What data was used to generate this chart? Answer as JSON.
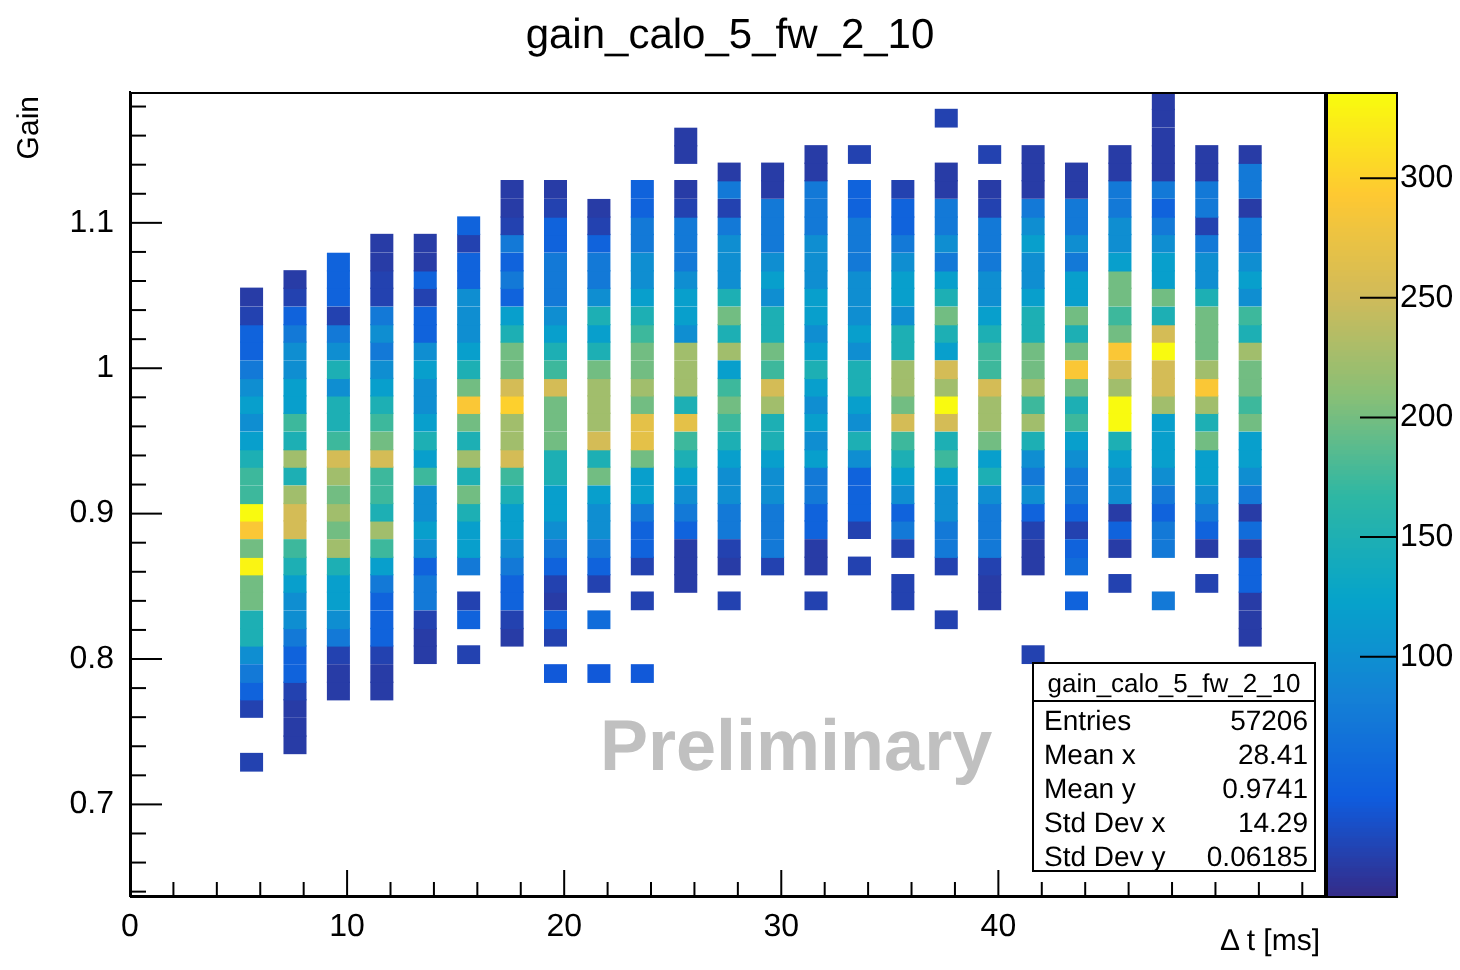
{
  "chart_data": {
    "type": "heatmap",
    "title": "gain_calo_5_fw_2_10",
    "xlabel": "Δ t [ms]",
    "ylabel": "Gain",
    "x": [
      5.6,
      7.6,
      9.6,
      11.6,
      13.6,
      15.6,
      17.6,
      19.6,
      21.6,
      23.6,
      25.6,
      27.6,
      29.6,
      31.6,
      33.6,
      35.6,
      37.6,
      39.6,
      41.6,
      43.6,
      45.6,
      47.6,
      49.6,
      51.6
    ],
    "y": [
      1.184,
      1.172,
      1.159,
      1.147,
      1.135,
      1.123,
      1.11,
      1.098,
      1.086,
      1.073,
      1.061,
      1.049,
      1.036,
      1.024,
      1.012,
      0.999,
      0.987,
      0.975,
      0.963,
      0.95,
      0.938,
      0.926,
      0.913,
      0.901,
      0.889,
      0.876,
      0.864,
      0.852,
      0.84,
      0.827,
      0.815,
      0.803,
      0.79,
      0.778,
      0.766,
      0.753,
      0.741,
      0.729
    ],
    "cells": [
      [
        null,
        null,
        null,
        null,
        null,
        null,
        null,
        null,
        null,
        null,
        null,
        null,
        null,
        null,
        null,
        null,
        null,
        null,
        null,
        null,
        null,
        15,
        null,
        null
      ],
      [
        null,
        null,
        null,
        null,
        null,
        null,
        null,
        null,
        null,
        null,
        null,
        null,
        null,
        null,
        null,
        null,
        20,
        null,
        null,
        null,
        null,
        15,
        null,
        null
      ],
      [
        null,
        null,
        null,
        null,
        null,
        null,
        null,
        null,
        null,
        null,
        15,
        null,
        null,
        null,
        null,
        null,
        null,
        null,
        null,
        null,
        null,
        15,
        null,
        null
      ],
      [
        null,
        null,
        null,
        null,
        null,
        null,
        null,
        null,
        null,
        null,
        15,
        null,
        null,
        15,
        20,
        null,
        null,
        20,
        15,
        null,
        15,
        15,
        15,
        15
      ],
      [
        null,
        null,
        null,
        null,
        null,
        null,
        null,
        null,
        null,
        null,
        null,
        15,
        15,
        15,
        null,
        null,
        15,
        null,
        15,
        15,
        15,
        15,
        15,
        75
      ],
      [
        null,
        null,
        null,
        null,
        null,
        null,
        15,
        15,
        null,
        50,
        15,
        75,
        15,
        75,
        50,
        20,
        15,
        15,
        15,
        15,
        75,
        75,
        75,
        75
      ],
      [
        null,
        null,
        null,
        null,
        null,
        null,
        15,
        20,
        15,
        50,
        20,
        20,
        75,
        75,
        50,
        50,
        75,
        20,
        75,
        75,
        75,
        50,
        75,
        15
      ],
      [
        null,
        null,
        null,
        null,
        null,
        50,
        20,
        50,
        20,
        75,
        75,
        75,
        75,
        75,
        75,
        50,
        75,
        75,
        100,
        75,
        100,
        75,
        20,
        75
      ],
      [
        null,
        null,
        null,
        15,
        15,
        20,
        75,
        50,
        50,
        75,
        75,
        100,
        75,
        100,
        75,
        75,
        100,
        75,
        120,
        100,
        100,
        100,
        75,
        75
      ],
      [
        null,
        null,
        50,
        15,
        15,
        50,
        50,
        75,
        75,
        100,
        75,
        100,
        100,
        100,
        75,
        100,
        75,
        75,
        100,
        75,
        120,
        120,
        100,
        100
      ],
      [
        null,
        15,
        50,
        20,
        50,
        50,
        75,
        75,
        75,
        100,
        100,
        100,
        120,
        100,
        100,
        120,
        120,
        100,
        100,
        120,
        200,
        120,
        100,
        120
      ],
      [
        15,
        20,
        50,
        20,
        20,
        100,
        50,
        75,
        100,
        120,
        120,
        150,
        100,
        120,
        100,
        120,
        150,
        100,
        120,
        120,
        200,
        200,
        150,
        100
      ],
      [
        20,
        50,
        20,
        75,
        50,
        100,
        120,
        100,
        150,
        150,
        120,
        200,
        150,
        120,
        100,
        100,
        200,
        120,
        150,
        200,
        175,
        150,
        200,
        175
      ],
      [
        50,
        75,
        75,
        100,
        50,
        100,
        150,
        120,
        120,
        175,
        100,
        150,
        150,
        100,
        120,
        150,
        150,
        150,
        150,
        150,
        200,
        255,
        200,
        150
      ],
      [
        50,
        100,
        100,
        75,
        100,
        120,
        200,
        150,
        150,
        200,
        225,
        225,
        200,
        120,
        100,
        150,
        120,
        175,
        200,
        200,
        290,
        335,
        200,
        225
      ],
      [
        75,
        100,
        150,
        100,
        120,
        150,
        200,
        175,
        200,
        200,
        225,
        120,
        175,
        150,
        150,
        225,
        255,
        175,
        200,
        290,
        255,
        255,
        225,
        200
      ],
      [
        100,
        120,
        100,
        120,
        100,
        200,
        255,
        255,
        225,
        225,
        225,
        175,
        255,
        120,
        150,
        225,
        225,
        255,
        225,
        200,
        225,
        255,
        290,
        200
      ],
      [
        120,
        120,
        150,
        150,
        100,
        290,
        300,
        200,
        225,
        200,
        150,
        200,
        225,
        100,
        120,
        200,
        335,
        225,
        175,
        150,
        335,
        225,
        225,
        175
      ],
      [
        100,
        175,
        150,
        175,
        120,
        200,
        225,
        200,
        225,
        270,
        270,
        175,
        150,
        120,
        100,
        255,
        255,
        225,
        225,
        175,
        335,
        120,
        150,
        200
      ],
      [
        120,
        150,
        175,
        200,
        150,
        150,
        225,
        200,
        255,
        270,
        175,
        150,
        150,
        100,
        150,
        175,
        150,
        200,
        150,
        120,
        150,
        120,
        200,
        120
      ],
      [
        150,
        225,
        255,
        255,
        120,
        225,
        255,
        150,
        150,
        200,
        150,
        120,
        120,
        120,
        100,
        150,
        175,
        120,
        100,
        100,
        120,
        120,
        120,
        120
      ],
      [
        175,
        150,
        225,
        175,
        175,
        150,
        175,
        150,
        200,
        120,
        120,
        100,
        100,
        75,
        50,
        120,
        120,
        150,
        75,
        75,
        100,
        100,
        120,
        100
      ],
      [
        175,
        225,
        200,
        175,
        100,
        200,
        150,
        120,
        120,
        120,
        100,
        100,
        100,
        75,
        50,
        100,
        100,
        100,
        100,
        75,
        100,
        75,
        100,
        75
      ],
      [
        335,
        255,
        225,
        150,
        100,
        150,
        120,
        120,
        100,
        75,
        75,
        75,
        75,
        50,
        50,
        50,
        100,
        75,
        50,
        50,
        15,
        50,
        75,
        15
      ],
      [
        290,
        255,
        200,
        225,
        120,
        120,
        120,
        100,
        100,
        50,
        50,
        75,
        75,
        50,
        20,
        75,
        75,
        75,
        20,
        20,
        50,
        75,
        50,
        60
      ],
      [
        200,
        175,
        225,
        175,
        100,
        120,
        100,
        75,
        75,
        50,
        15,
        20,
        75,
        15,
        null,
        20,
        75,
        75,
        15,
        50,
        15,
        75,
        15,
        15
      ],
      [
        330,
        150,
        150,
        120,
        50,
        75,
        75,
        50,
        50,
        20,
        15,
        15,
        20,
        15,
        20,
        null,
        20,
        20,
        15,
        60,
        null,
        null,
        null,
        50
      ],
      [
        200,
        120,
        120,
        75,
        75,
        null,
        50,
        20,
        20,
        null,
        15,
        null,
        null,
        null,
        null,
        20,
        null,
        15,
        null,
        null,
        20,
        null,
        20,
        50
      ],
      [
        200,
        100,
        120,
        50,
        75,
        20,
        50,
        15,
        null,
        20,
        null,
        20,
        null,
        20,
        null,
        20,
        null,
        15,
        null,
        50,
        null,
        75,
        null,
        15
      ],
      [
        150,
        100,
        100,
        50,
        20,
        50,
        20,
        50,
        60,
        null,
        null,
        null,
        null,
        null,
        null,
        null,
        20,
        null,
        null,
        null,
        null,
        null,
        null,
        15
      ],
      [
        150,
        75,
        75,
        50,
        15,
        null,
        15,
        20,
        null,
        null,
        null,
        null,
        null,
        null,
        null,
        null,
        null,
        null,
        null,
        null,
        null,
        null,
        null,
        15
      ],
      [
        100,
        50,
        20,
        20,
        15,
        20,
        null,
        null,
        null,
        null,
        null,
        null,
        null,
        null,
        null,
        null,
        null,
        null,
        20,
        null,
        null,
        null,
        null,
        null
      ],
      [
        75,
        50,
        15,
        15,
        null,
        null,
        null,
        40,
        40,
        40,
        null,
        null,
        null,
        null,
        null,
        null,
        null,
        null,
        null,
        null,
        null,
        null,
        null,
        null
      ],
      [
        50,
        20,
        15,
        15,
        null,
        null,
        null,
        null,
        null,
        null,
        null,
        null,
        null,
        null,
        null,
        null,
        null,
        null,
        null,
        null,
        null,
        null,
        null,
        null
      ],
      [
        20,
        15,
        null,
        null,
        null,
        null,
        null,
        null,
        null,
        null,
        null,
        null,
        null,
        null,
        null,
        null,
        null,
        null,
        null,
        null,
        null,
        null,
        null,
        null
      ],
      [
        null,
        15,
        null,
        null,
        null,
        null,
        null,
        null,
        null,
        null,
        null,
        null,
        null,
        null,
        null,
        null,
        null,
        null,
        null,
        null,
        null,
        null,
        null,
        null
      ],
      [
        null,
        15,
        null,
        null,
        null,
        null,
        null,
        null,
        null,
        null,
        null,
        null,
        null,
        null,
        null,
        null,
        null,
        null,
        null,
        null,
        null,
        null,
        null,
        null
      ],
      [
        20,
        null,
        null,
        null,
        null,
        null,
        null,
        null,
        null,
        null,
        null,
        null,
        null,
        null,
        null,
        null,
        null,
        null,
        null,
        null,
        null,
        null,
        null,
        null
      ]
    ],
    "clim": [
      0,
      336
    ],
    "cticks": [
      100,
      150,
      200,
      250,
      300
    ],
    "xlim": [
      0,
      55
    ],
    "xticks": [
      0,
      {
        "value": 2,
        "label": null
      },
      {
        "value": 4,
        "label": null
      },
      {
        "value": 6,
        "label": null
      },
      {
        "value": 8,
        "label": null
      },
      10,
      {
        "value": 12,
        "label": null
      },
      {
        "value": 14,
        "label": null
      },
      {
        "value": 16,
        "label": null
      },
      {
        "value": 18,
        "label": null
      },
      20,
      {
        "value": 22,
        "label": null
      },
      {
        "value": 24,
        "label": null
      },
      {
        "value": 26,
        "label": null
      },
      {
        "value": 28,
        "label": null
      },
      30,
      {
        "value": 32,
        "label": null
      },
      {
        "value": 34,
        "label": null
      },
      {
        "value": 36,
        "label": null
      },
      {
        "value": 38,
        "label": null
      },
      40,
      {
        "value": 42,
        "label": null
      },
      {
        "value": 44,
        "label": null
      },
      {
        "value": 46,
        "label": null
      },
      {
        "value": 48,
        "label": null
      },
      {
        "value": 50,
        "label": null
      },
      {
        "value": 52,
        "label": null
      },
      {
        "value": 54,
        "label": null
      }
    ],
    "ylim": [
      0.637,
      1.19
    ],
    "yticks": [
      {
        "value": 0.64,
        "label": null
      },
      {
        "value": 0.66,
        "label": null
      },
      {
        "value": 0.68,
        "label": null
      },
      0.7,
      {
        "value": 0.72,
        "label": null
      },
      {
        "value": 0.74,
        "label": null
      },
      {
        "value": 0.76,
        "label": null
      },
      {
        "value": 0.78,
        "label": null
      },
      0.8,
      {
        "value": 0.82,
        "label": null
      },
      {
        "value": 0.84,
        "label": null
      },
      {
        "value": 0.86,
        "label": null
      },
      {
        "value": 0.88,
        "label": null
      },
      0.9,
      {
        "value": 0.92,
        "label": null
      },
      {
        "value": 0.94,
        "label": null
      },
      {
        "value": 0.96,
        "label": null
      },
      {
        "value": 0.98,
        "label": null
      },
      1,
      {
        "value": 1.02,
        "label": null
      },
      {
        "value": 1.04,
        "label": null
      },
      {
        "value": 1.06,
        "label": null
      },
      {
        "value": 1.08,
        "label": null
      },
      1.1,
      {
        "value": 1.12,
        "label": null
      },
      {
        "value": 1.14,
        "label": null
      },
      {
        "value": 1.16,
        "label": null
      },
      {
        "value": 1.18,
        "label": null
      }
    ],
    "annotations": [
      "Preliminary",
      "gain_calo_5_fw_2_10",
      "Entries 57206",
      "Mean x 28.41",
      "Mean y 0.9741",
      "Std Dev x 14.29",
      "Std Dev y 0.06185"
    ]
  }
}
